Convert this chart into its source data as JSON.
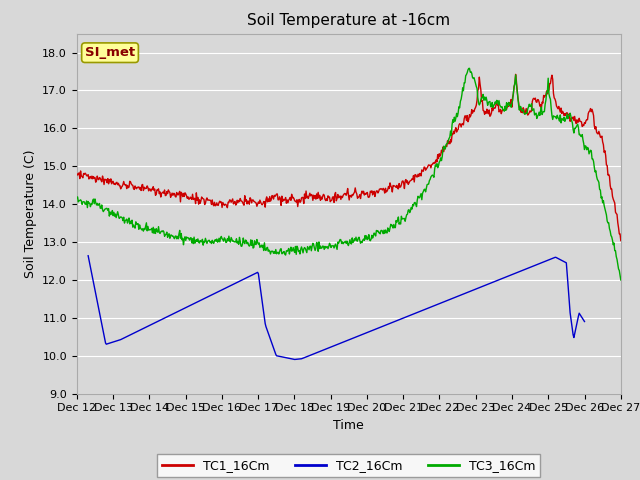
{
  "title": "Soil Temperature at -16cm",
  "xlabel": "Time",
  "ylabel": "Soil Temperature (C)",
  "ylim": [
    9.0,
    18.5
  ],
  "yticks": [
    9.0,
    10.0,
    11.0,
    12.0,
    13.0,
    14.0,
    15.0,
    16.0,
    17.0,
    18.0
  ],
  "bg_color": "#d8d8d8",
  "plot_bg_color": "#d8d8d8",
  "grid_color": "#ffffff",
  "legend_labels": [
    "TC1_16Cm",
    "TC2_16Cm",
    "TC3_16Cm"
  ],
  "legend_colors": [
    "#cc0000",
    "#0000cc",
    "#00aa00"
  ],
  "annotation_text": "SI_met",
  "annotation_bg": "#ffff99",
  "annotation_border": "#999900",
  "xtick_labels": [
    "Dec 12",
    "Dec 13",
    "Dec 14",
    "Dec 15",
    "Dec 16",
    "Dec 17",
    "Dec 18",
    "Dec 19",
    "Dec 20",
    "Dec 21",
    "Dec 22",
    "Dec 23",
    "Dec 24",
    "Dec 25",
    "Dec 26",
    "Dec 27"
  ],
  "line_width": 1.0,
  "title_fontsize": 11,
  "axis_fontsize": 9,
  "tick_fontsize": 8
}
